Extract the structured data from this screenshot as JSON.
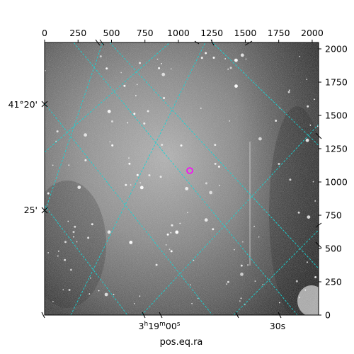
{
  "image": {
    "pixel_range": [
      0,
      2048
    ],
    "top_ticks": [
      "0",
      "250",
      "500",
      "750",
      "1000",
      "1250",
      "1500",
      "1750",
      "2000"
    ],
    "right_ticks": [
      "0",
      "250",
      "500",
      "750",
      "1000",
      "1250",
      "1500",
      "1750",
      "2000"
    ]
  },
  "world_axes": {
    "left_labels": [
      "41°20'",
      "25'"
    ],
    "bottom_labels": [
      "3h19m00s",
      "30s"
    ],
    "xlabel": "pos.eq.ra",
    "grid_color": "#19d3d3",
    "background_gradient": [
      "#c8c8c8",
      "#1a1a1a"
    ]
  },
  "marker": {
    "color": "#ff00ff"
  }
}
